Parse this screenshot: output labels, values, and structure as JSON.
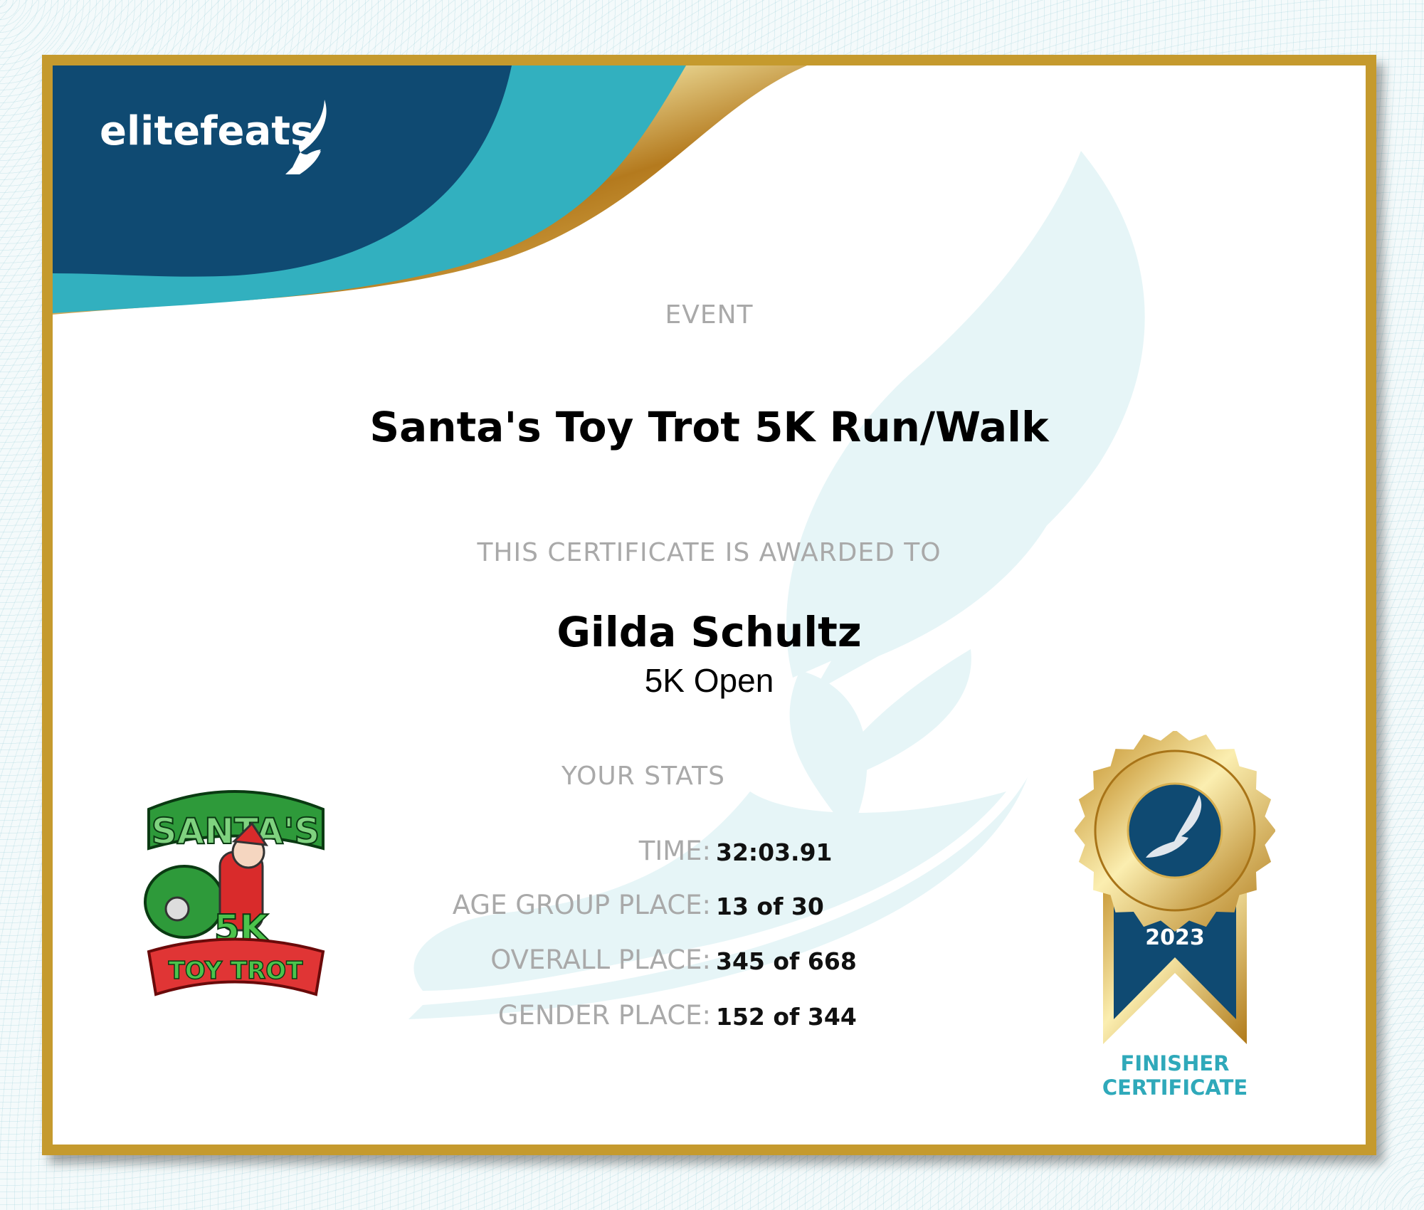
{
  "brand": {
    "name": "elitefeats",
    "navy": "#0f4a72",
    "teal": "#32b0bf",
    "gold": "#c59a2e"
  },
  "event": {
    "label": "EVENT",
    "title": "Santa's Toy Trot 5K Run/Walk"
  },
  "award": {
    "label": "THIS CERTIFICATE IS AWARDED TO",
    "name": "Gilda Schultz",
    "division": "5K Open"
  },
  "stats": {
    "label": "YOUR STATS",
    "rows": [
      {
        "key": "TIME:",
        "value": "32:03.91"
      },
      {
        "key": "AGE GROUP PLACE:",
        "value": "13 of 30"
      },
      {
        "key": "OVERALL PLACE:",
        "value": "345 of 668"
      },
      {
        "key": "GENDER PLACE:",
        "value": "152 of 344"
      }
    ]
  },
  "event_logo": {
    "text_top": "SANTA'S",
    "text_mid": "5K",
    "text_bottom": "TOY TROT"
  },
  "medal": {
    "year": "2023",
    "caption_line1": "FINISHER",
    "caption_line2": "CERTIFICATE"
  }
}
